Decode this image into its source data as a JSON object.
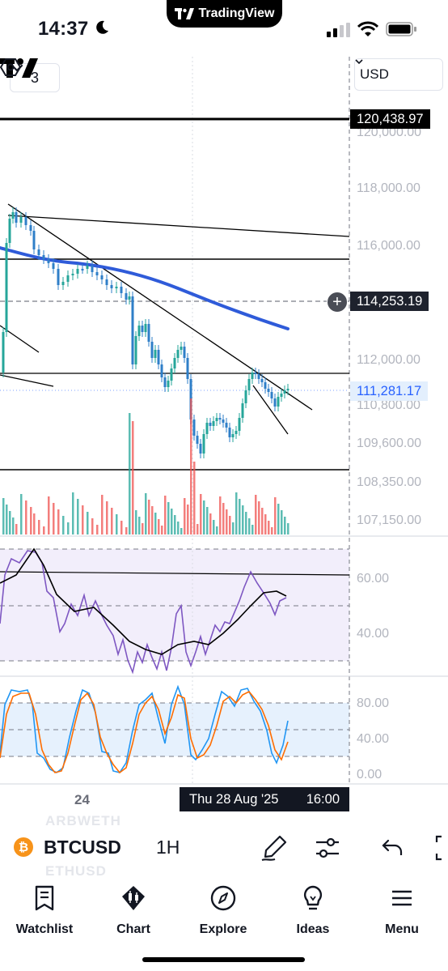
{
  "status_bar": {
    "time": "14:37"
  },
  "brand": {
    "name": "TradingView"
  },
  "chart": {
    "interval_selector": "3",
    "currency": "USD",
    "price_axis": {
      "labels": [
        "120,000.00",
        "118,000.00",
        "116,000.00",
        "112,000.00",
        "110,800.00",
        "109,600.00",
        "108,350.00",
        "107,150.00"
      ],
      "tag_level_top": "120,438.97",
      "tag_crosshair": "114,253.19",
      "tag_last_price": "111,281.17"
    },
    "rsi_axis": {
      "labels": [
        "60.00",
        "40.00"
      ]
    },
    "stoch_axis": {
      "labels": [
        "80.00",
        "40.00",
        "0.00"
      ]
    },
    "time_axis": {
      "day_label": "24",
      "crosshair_date": "Thu 28 Aug '25",
      "crosshair_time": "16:00"
    }
  },
  "symbol_bar": {
    "ghost_top": "ARBWETH",
    "ghost_bottom": "ETHUSD",
    "coin_glyph": "₿",
    "symbol": "BTCUSD",
    "interval": "1H"
  },
  "nav": [
    {
      "label": "Watchlist",
      "icon": "watchlist-icon"
    },
    {
      "label": "Chart",
      "icon": "chart-icon"
    },
    {
      "label": "Explore",
      "icon": "compass-icon"
    },
    {
      "label": "Ideas",
      "icon": "lightbulb-icon"
    },
    {
      "label": "Menu",
      "icon": "menu-icon"
    }
  ],
  "colors": {
    "accent_blue": "#2962ff",
    "ma_line": "#2f5bd9",
    "candle_up": "#26a69a",
    "candle_down": "#2f7fc8",
    "volume_up": "#26a69a",
    "volume_down": "#ef5350",
    "rsi_line": "#7e57c2",
    "stoch_k": "#2196f3",
    "stoch_d": "#ff6d00"
  }
}
